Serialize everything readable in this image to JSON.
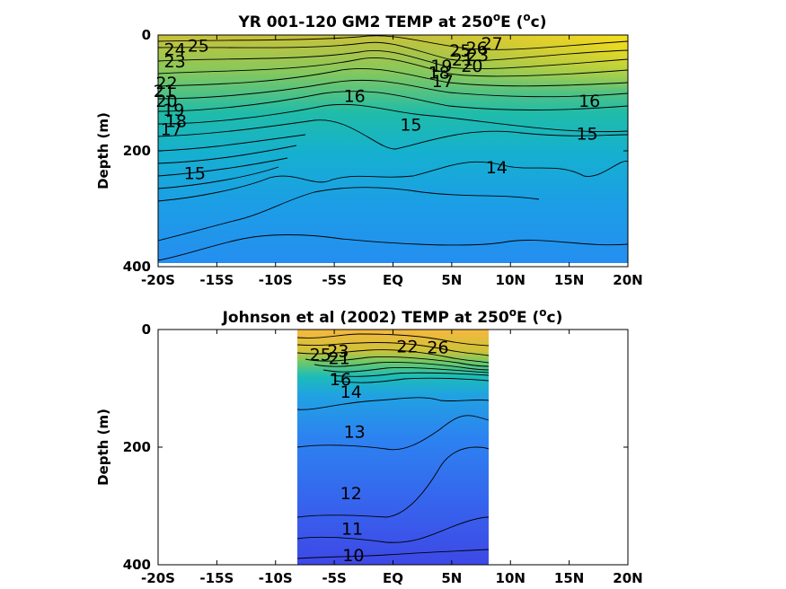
{
  "chart_data": [
    {
      "type": "heatmap",
      "title": "YR 001-120 GM2 TEMP at 250°E (°c)",
      "title_main": "YR 001-120 GM2 TEMP at 250",
      "title_sup1": "o",
      "title_mid": "E (",
      "title_sup2": "o",
      "title_end": "c)",
      "ylabel": "Depth (m)",
      "xlim": [
        -20,
        20
      ],
      "ylim": [
        400,
        0
      ],
      "xticks": [
        -20,
        -15,
        -10,
        -5,
        0,
        5,
        10,
        15,
        20
      ],
      "xtick_labels": [
        "-20S",
        "-15S",
        "-10S",
        "-5S",
        "EQ",
        "5N",
        "10N",
        "15N",
        "20N"
      ],
      "yticks": [
        0,
        200,
        400
      ],
      "ytick_labels": [
        "0",
        "200",
        "400"
      ],
      "data_extent": {
        "x": [
          -20,
          20
        ],
        "depth": [
          0,
          385
        ]
      },
      "colormap": [
        "#3a4be0",
        "#2a8ff0",
        "#13b7c8",
        "#41c49a",
        "#93c955",
        "#d8c234",
        "#f7d720"
      ],
      "contour_labels": [
        {
          "text": "25",
          "x": -17.5,
          "y": 18
        },
        {
          "text": "27",
          "x": 7.5,
          "y": 14
        },
        {
          "text": "24",
          "x": -19.5,
          "y": 24
        },
        {
          "text": "26",
          "x": 6.2,
          "y": 22
        },
        {
          "text": "25",
          "x": 4.8,
          "y": 26
        },
        {
          "text": "23",
          "x": 6.3,
          "y": 34
        },
        {
          "text": "23",
          "x": -19.5,
          "y": 45
        },
        {
          "text": "21",
          "x": 5.0,
          "y": 42
        },
        {
          "text": "20",
          "x": 5.8,
          "y": 53
        },
        {
          "text": "19",
          "x": 3.2,
          "y": 53
        },
        {
          "text": "18",
          "x": 3.0,
          "y": 64
        },
        {
          "text": "17",
          "x": 3.3,
          "y": 79
        },
        {
          "text": "22",
          "x": -20.2,
          "y": 82
        },
        {
          "text": "21",
          "x": -20.4,
          "y": 96
        },
        {
          "text": "16",
          "x": -4.2,
          "y": 105
        },
        {
          "text": "20",
          "x": -20.2,
          "y": 113
        },
        {
          "text": "19",
          "x": -19.6,
          "y": 129
        },
        {
          "text": "16",
          "x": 15.8,
          "y": 113
        },
        {
          "text": "18",
          "x": -19.4,
          "y": 148
        },
        {
          "text": "17",
          "x": -19.8,
          "y": 162
        },
        {
          "text": "15",
          "x": 0.6,
          "y": 154
        },
        {
          "text": "15",
          "x": 15.6,
          "y": 170
        },
        {
          "text": "14",
          "x": 7.9,
          "y": 228
        },
        {
          "text": "15",
          "x": -17.8,
          "y": 238
        }
      ]
    },
    {
      "type": "heatmap",
      "title": "Johnson et al (2002) TEMP at 250°E (°c)",
      "title_main": "Johnson et al (2002) TEMP at 250",
      "title_sup1": "o",
      "title_mid": "E (",
      "title_sup2": "o",
      "title_end": "c)",
      "ylabel": "Depth (m)",
      "xlim": [
        -20,
        20
      ],
      "ylim": [
        400,
        0
      ],
      "xticks": [
        -20,
        -15,
        -10,
        -5,
        0,
        5,
        10,
        15,
        20
      ],
      "xtick_labels": [
        "-20S",
        "-15S",
        "-10S",
        "-5S",
        "EQ",
        "5N",
        "10N",
        "15N",
        "20N"
      ],
      "yticks": [
        0,
        200,
        400
      ],
      "ytick_labels": [
        "0",
        "200",
        "400"
      ],
      "data_extent": {
        "x": [
          -8,
          8.2
        ],
        "depth": [
          0,
          400
        ]
      },
      "colormap": [
        "#3e47e6",
        "#2f78f2",
        "#20a6e0",
        "#22c2b0",
        "#75c95f",
        "#d3c236",
        "#f8b53e"
      ],
      "contour_labels": [
        {
          "text": "25",
          "x": -7.1,
          "y": 42
        },
        {
          "text": "26",
          "x": 2.9,
          "y": 30
        },
        {
          "text": "22",
          "x": 0.3,
          "y": 28
        },
        {
          "text": "23",
          "x": -5.6,
          "y": 36
        },
        {
          "text": "21",
          "x": -5.5,
          "y": 48
        },
        {
          "text": "16",
          "x": -5.4,
          "y": 84
        },
        {
          "text": "14",
          "x": -4.5,
          "y": 105
        },
        {
          "text": "13",
          "x": -4.2,
          "y": 173
        },
        {
          "text": "12",
          "x": -4.5,
          "y": 278
        },
        {
          "text": "11",
          "x": -4.4,
          "y": 338
        },
        {
          "text": "10",
          "x": -4.3,
          "y": 383
        }
      ]
    }
  ]
}
